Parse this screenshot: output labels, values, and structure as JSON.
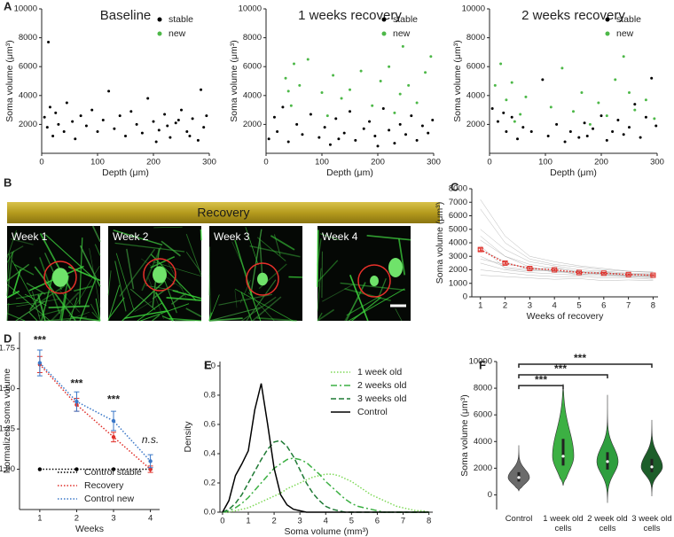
{
  "chart_data": [
    {
      "type": "scatter",
      "panel": "A",
      "title": "Baseline",
      "xlabel": "Depth (μm)",
      "ylabel": "Soma volume (μm³)",
      "xlim": [
        0,
        300
      ],
      "xticks": [
        0,
        100,
        200,
        300
      ],
      "ylim": [
        0,
        10000
      ],
      "yticks": [
        2000,
        4000,
        6000,
        8000,
        10000
      ],
      "legend": "upper right",
      "series": [
        {
          "name": "stable",
          "color": "#000000",
          "x": [
            5,
            10,
            12,
            15,
            20,
            25,
            30,
            40,
            45,
            55,
            60,
            70,
            80,
            90,
            100,
            110,
            120,
            130,
            140,
            150,
            160,
            170,
            180,
            190,
            200,
            210,
            220,
            230,
            240,
            250,
            260,
            270,
            280,
            285,
            290,
            295,
            265,
            245,
            225,
            205
          ],
          "values": [
            2500,
            1800,
            7700,
            3200,
            1200,
            2800,
            2000,
            1500,
            3500,
            2200,
            1000,
            2600,
            1900,
            3000,
            1500,
            2300,
            4300,
            1700,
            2600,
            1200,
            2900,
            2000,
            1400,
            3800,
            2200,
            1600,
            2700,
            1100,
            2100,
            3000,
            1500,
            2400,
            900,
            4400,
            1800,
            2600,
            1200,
            2300,
            1900,
            800
          ]
        },
        {
          "name": "new",
          "color": "#4db848",
          "x": [],
          "values": []
        }
      ]
    },
    {
      "type": "scatter",
      "title": "1 weeks recovery",
      "xlabel": "Depth (μm)",
      "ylabel": "Soma volume (μm³)",
      "xlim": [
        0,
        300
      ],
      "xticks": [
        0,
        100,
        200,
        300
      ],
      "ylim": [
        0,
        10000
      ],
      "yticks": [
        2000,
        4000,
        6000,
        8000,
        10000
      ],
      "legend": "upper right",
      "series": [
        {
          "name": "stable",
          "color": "#000000",
          "x": [
            5,
            15,
            20,
            30,
            40,
            55,
            65,
            80,
            95,
            105,
            115,
            125,
            140,
            150,
            160,
            175,
            185,
            195,
            210,
            220,
            230,
            240,
            250,
            260,
            270,
            280,
            290,
            298,
            200,
            130
          ],
          "values": [
            1000,
            2500,
            1500,
            3200,
            800,
            2000,
            1300,
            2700,
            1100,
            1800,
            600,
            2400,
            1400,
            2900,
            900,
            1700,
            2200,
            1200,
            3100,
            1600,
            700,
            2000,
            1300,
            2600,
            900,
            1900,
            1400,
            2300,
            500,
            1000
          ]
        },
        {
          "name": "new",
          "color": "#4db848",
          "x": [
            35,
            40,
            45,
            50,
            60,
            75,
            100,
            120,
            135,
            150,
            170,
            190,
            205,
            220,
            240,
            245,
            255,
            270,
            285,
            295,
            230,
            110
          ],
          "values": [
            5200,
            4300,
            3300,
            6200,
            4700,
            6500,
            4200,
            5400,
            3800,
            4400,
            5700,
            3300,
            5000,
            6000,
            4100,
            7400,
            4700,
            3500,
            5600,
            6700,
            2800,
            2600
          ]
        }
      ]
    },
    {
      "type": "scatter",
      "title": "2 weeks recovery",
      "xlabel": "Depth (μm)",
      "ylabel": "Soma volume (μm³)",
      "xlim": [
        0,
        300
      ],
      "xticks": [
        0,
        100,
        200,
        300
      ],
      "ylim": [
        0,
        10000
      ],
      "yticks": [
        2000,
        4000,
        6000,
        8000,
        10000
      ],
      "legend": "upper right",
      "series": [
        {
          "name": "stable",
          "color": "#000000",
          "x": [
            5,
            15,
            25,
            30,
            40,
            50,
            60,
            95,
            105,
            120,
            135,
            145,
            160,
            170,
            185,
            200,
            210,
            220,
            230,
            240,
            250,
            260,
            270,
            280,
            290,
            298,
            175,
            75
          ],
          "values": [
            3100,
            2200,
            2800,
            1500,
            2500,
            1000,
            1800,
            5100,
            1200,
            2000,
            800,
            1500,
            1100,
            2100,
            1700,
            2600,
            900,
            1500,
            2300,
            1300,
            1800,
            3400,
            1100,
            2500,
            5200,
            1900,
            1200,
            1500
          ]
        },
        {
          "name": "new",
          "color": "#4db848",
          "x": [
            10,
            20,
            30,
            40,
            55,
            65,
            110,
            130,
            150,
            165,
            180,
            195,
            210,
            225,
            240,
            250,
            260,
            280,
            295,
            45
          ],
          "values": [
            4700,
            6200,
            3700,
            4900,
            2700,
            3900,
            3200,
            5900,
            2900,
            4200,
            2000,
            3500,
            2600,
            5100,
            6700,
            4200,
            3000,
            3700,
            2400,
            2200
          ]
        }
      ]
    },
    {
      "type": "line",
      "panel": "C",
      "xlabel": "Weeks of recovery",
      "ylabel": "Soma volume (μm³)",
      "x": [
        1,
        2,
        3,
        4,
        5,
        6,
        7,
        8
      ],
      "xlim": [
        0.65,
        8.2
      ],
      "xticks": [
        1,
        2,
        3,
        4,
        5,
        6,
        7,
        8
      ],
      "ylim": [
        0,
        8000
      ],
      "yticks": [
        0,
        1000,
        2000,
        3000,
        4000,
        5000,
        6000,
        7000,
        8000
      ],
      "trace_color": "#9a9a9a",
      "traces": [
        [
          4200,
          3000,
          2400,
          2100,
          1900,
          1800,
          1700,
          1600
        ],
        [
          3000,
          2200,
          2000,
          1900,
          1700,
          1650,
          1600,
          1550
        ],
        [
          5000,
          3500,
          2600,
          2300,
          2000,
          1900,
          1750,
          1700
        ],
        [
          2500,
          2000,
          1800,
          1700,
          1600,
          1550,
          1500,
          1450
        ],
        [
          6500,
          4000,
          2800,
          2400,
          2200,
          2000,
          1900,
          1800
        ],
        [
          3500,
          2600,
          2000,
          2200,
          1800,
          1700,
          1600,
          1500
        ],
        [
          2000,
          1800,
          1600,
          1500,
          1500,
          1400,
          1400,
          1300
        ],
        [
          4500,
          3000,
          2200,
          1900,
          1800,
          1750,
          1700,
          1650
        ],
        [
          3800,
          2100,
          1900,
          2000,
          1600,
          1900,
          1500,
          1400
        ],
        [
          2800,
          2400,
          2200,
          1800,
          1900,
          1600,
          1550,
          1600
        ],
        [
          7200,
          4500,
          3000,
          2600,
          2300,
          2100,
          1900,
          1850
        ],
        [
          1600,
          1500,
          1400,
          1300,
          1350,
          1200,
          1250,
          1200
        ]
      ],
      "series": [
        {
          "color": "#e0302a",
          "linestyle": "dotted",
          "marker": "square",
          "values": [
            3500,
            2500,
            2100,
            2000,
            1800,
            1750,
            1650,
            1600
          ],
          "errors": [
            100,
            80,
            60,
            60,
            50,
            50,
            50,
            50
          ]
        }
      ]
    },
    {
      "type": "line",
      "panel": "D",
      "xlabel": "Weeks",
      "ylabel": "Normalized soma volume",
      "x": [
        1,
        2,
        3,
        4
      ],
      "xlim": [
        0.45,
        4.25
      ],
      "xticks": [
        1,
        2,
        3,
        4
      ],
      "ylim": [
        0.75,
        1.85
      ],
      "yticks": [
        {
          "value": 1,
          "label": "1.00"
        },
        1.25,
        {
          "value": 1.5,
          "label": "1.50"
        },
        1.75
      ],
      "legend": "lower right",
      "series": [
        {
          "name": "Control stable",
          "color": "#000000",
          "linestyle": "dotted",
          "marker": "circle",
          "values": [
            1,
            1,
            1,
            1
          ]
        },
        {
          "name": "Recovery",
          "color": "#e0302a",
          "linestyle": "dotted",
          "marker": "circle",
          "values": [
            1.65,
            1.4,
            1.2,
            1.0
          ],
          "errors": [
            0.05,
            0.04,
            0.03,
            0.02
          ]
        },
        {
          "name": "Control new",
          "color": "#3b78c8",
          "linestyle": "dotted",
          "marker": "circle",
          "values": [
            1.66,
            1.42,
            1.3,
            1.05
          ],
          "errors": [
            0.08,
            0.06,
            0.06,
            0.04
          ]
        }
      ],
      "annotations": [
        {
          "text": "***",
          "x": 1,
          "y": 1.8
        },
        {
          "text": "***",
          "x": 2,
          "y": 1.53
        },
        {
          "text": "***",
          "x": 3,
          "y": 1.43
        },
        {
          "text": "n.s.",
          "x": 4,
          "y": 1.18
        }
      ]
    },
    {
      "type": "line",
      "panel": "E",
      "xlabel": "Soma volume (mm³)",
      "ylabel": "Density",
      "x": [
        0,
        0.25,
        0.5,
        0.75,
        1,
        1.25,
        1.5,
        1.75,
        2,
        2.25,
        2.5,
        2.75,
        3,
        3.25,
        3.5,
        3.75,
        4,
        4.25,
        4.5,
        4.75,
        5,
        5.25,
        5.5,
        5.75,
        6,
        6.25,
        6.5,
        6.75,
        7,
        7.25,
        7.5,
        7.75,
        8
      ],
      "xlim": [
        -0.1,
        8.15
      ],
      "xticks": [
        0,
        1,
        2,
        3,
        4,
        5,
        6,
        7,
        8
      ],
      "ylim": [
        0,
        1.03
      ],
      "yticks": [
        {
          "value": 0,
          "label": "0.0"
        },
        0.2,
        0.4,
        0.6,
        0.8,
        {
          "value": 1,
          "label": "1.0"
        }
      ],
      "legend": "upper right",
      "series": [
        {
          "name": "1 week old",
          "color": "#7ed957",
          "linestyle": "dotted",
          "values": [
            0,
            0,
            0.01,
            0.02,
            0.03,
            0.05,
            0.07,
            0.09,
            0.11,
            0.13,
            0.16,
            0.18,
            0.2,
            0.22,
            0.24,
            0.25,
            0.26,
            0.26,
            0.25,
            0.23,
            0.21,
            0.18,
            0.15,
            0.12,
            0.1,
            0.08,
            0.06,
            0.04,
            0.03,
            0.02,
            0.01,
            0.01,
            0
          ]
        },
        {
          "name": "2 weeks old",
          "color": "#3cb043",
          "linestyle": "dashdot",
          "values": [
            0,
            0.01,
            0.03,
            0.06,
            0.1,
            0.15,
            0.2,
            0.25,
            0.3,
            0.33,
            0.36,
            0.37,
            0.36,
            0.34,
            0.3,
            0.26,
            0.21,
            0.17,
            0.13,
            0.09,
            0.06,
            0.04,
            0.03,
            0.02,
            0.01,
            0,
            0,
            0,
            0,
            0,
            0,
            0,
            0
          ]
        },
        {
          "name": "3 weeks old",
          "color": "#1f7a35",
          "linestyle": "dashed",
          "values": [
            0,
            0.02,
            0.06,
            0.12,
            0.2,
            0.28,
            0.36,
            0.43,
            0.48,
            0.49,
            0.45,
            0.38,
            0.29,
            0.2,
            0.13,
            0.08,
            0.04,
            0.02,
            0.01,
            0,
            0,
            0,
            0,
            0,
            0,
            0,
            0,
            0,
            0,
            0,
            0,
            0,
            0
          ]
        },
        {
          "name": "Control",
          "color": "#000000",
          "linestyle": "solid",
          "values": [
            0,
            0.08,
            0.25,
            0.33,
            0.42,
            0.7,
            0.88,
            0.6,
            0.3,
            0.12,
            0.05,
            0.02,
            0.01,
            0,
            0,
            0,
            0,
            0,
            0,
            0,
            0,
            0,
            0,
            0,
            0,
            0,
            0,
            0,
            0,
            0,
            0,
            0,
            0
          ]
        }
      ]
    },
    {
      "type": "violin",
      "panel": "F",
      "ylabel": "Soma volume (μm³)",
      "ylim": [
        -1100,
        10000
      ],
      "yticks": [
        0,
        2000,
        4000,
        6000,
        8000,
        10000
      ],
      "categories": [
        "Control",
        "1 week old cells",
        "2 week old cells",
        "3 week old cells"
      ],
      "groups": [
        {
          "color": "#6b6b6b",
          "min": 300,
          "q1": 1000,
          "median": 1300,
          "q3": 1700,
          "max": 3700
        },
        {
          "color": "#3cb043",
          "min": 700,
          "q1": 2200,
          "median": 2900,
          "q3": 4200,
          "max": 8300
        },
        {
          "color": "#2e9e3e",
          "min": -600,
          "q1": 1900,
          "median": 2500,
          "q3": 3200,
          "max": 7500
        },
        {
          "color": "#1d5e2a",
          "min": -100,
          "q1": 1700,
          "median": 2100,
          "q3": 2700,
          "max": 5600
        }
      ],
      "brackets": [
        {
          "from": 0,
          "to": 1,
          "y": 8200,
          "label": "***"
        },
        {
          "from": 0,
          "to": 2,
          "y": 9000,
          "label": "***"
        },
        {
          "from": 0,
          "to": 3,
          "y": 9800,
          "label": "***"
        }
      ]
    }
  ],
  "panel_b": {
    "panel": "B",
    "banner": "Recovery",
    "frames": [
      "Week 1",
      "Week 2",
      "Week 3",
      "Week 4"
    ]
  }
}
